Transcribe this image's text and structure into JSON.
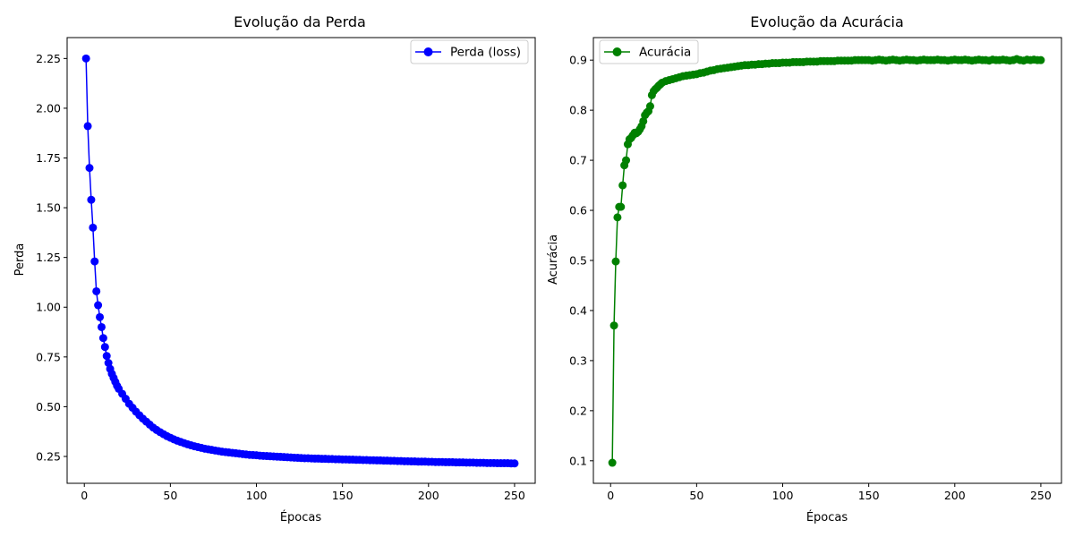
{
  "chart_data": [
    {
      "type": "line",
      "title": "Evolução da Perda",
      "xlabel": "Épocas",
      "ylabel": "Perda",
      "xlim": [
        -10,
        262
      ],
      "ylim": [
        0.115,
        2.355
      ],
      "xticks": [
        0,
        50,
        100,
        150,
        200,
        250
      ],
      "xtick_labels": [
        "0",
        "50",
        "100",
        "150",
        "200",
        "250"
      ],
      "yticks": [
        0.25,
        0.5,
        0.75,
        1.0,
        1.25,
        1.5,
        1.75,
        2.0,
        2.25
      ],
      "ytick_labels": [
        "0.25",
        "0.50",
        "0.75",
        "1.00",
        "1.25",
        "1.50",
        "1.75",
        "2.00",
        "2.25"
      ],
      "grid": false,
      "legend_position": "upper right",
      "series": [
        {
          "name": "Perda (loss)",
          "color": "#0000ff",
          "marker": "circle",
          "x": [
            1,
            2,
            3,
            4,
            5,
            6,
            7,
            8,
            9,
            10,
            11,
            12,
            13,
            14,
            15,
            16,
            17,
            18,
            19,
            20,
            22,
            24,
            26,
            28,
            30,
            32,
            34,
            36,
            38,
            40,
            42,
            44,
            46,
            48,
            50,
            52,
            54,
            56,
            58,
            60,
            62,
            64,
            66,
            68,
            70,
            72,
            74,
            76,
            78,
            80,
            82,
            84,
            86,
            88,
            90,
            92,
            94,
            96,
            98,
            100,
            102,
            104,
            106,
            108,
            110,
            112,
            114,
            116,
            118,
            120,
            122,
            124,
            126,
            128,
            130,
            132,
            134,
            136,
            138,
            140,
            142,
            144,
            146,
            148,
            150,
            152,
            154,
            156,
            158,
            160,
            162,
            164,
            166,
            168,
            170,
            172,
            174,
            176,
            178,
            180,
            182,
            184,
            186,
            188,
            190,
            192,
            194,
            196,
            198,
            200,
            202,
            204,
            206,
            208,
            210,
            212,
            214,
            216,
            218,
            220,
            222,
            224,
            226,
            228,
            230,
            232,
            234,
            236,
            238,
            240,
            242,
            244,
            246,
            248,
            250
          ],
          "y": [
            2.25,
            1.91,
            1.7,
            1.54,
            1.4,
            1.23,
            1.08,
            1.01,
            0.95,
            0.9,
            0.845,
            0.8,
            0.755,
            0.72,
            0.69,
            0.665,
            0.645,
            0.625,
            0.605,
            0.59,
            0.565,
            0.54,
            0.515,
            0.495,
            0.475,
            0.457,
            0.44,
            0.425,
            0.41,
            0.395,
            0.383,
            0.372,
            0.362,
            0.352,
            0.344,
            0.336,
            0.329,
            0.323,
            0.317,
            0.311,
            0.306,
            0.301,
            0.297,
            0.293,
            0.289,
            0.286,
            0.283,
            0.28,
            0.277,
            0.274,
            0.272,
            0.27,
            0.268,
            0.266,
            0.264,
            0.262,
            0.26,
            0.258,
            0.257,
            0.256,
            0.254,
            0.253,
            0.252,
            0.251,
            0.25,
            0.249,
            0.248,
            0.247,
            0.246,
            0.245,
            0.244,
            0.243,
            0.242,
            0.241,
            0.241,
            0.24,
            0.239,
            0.239,
            0.238,
            0.238,
            0.237,
            0.237,
            0.236,
            0.236,
            0.235,
            0.235,
            0.234,
            0.234,
            0.233,
            0.233,
            0.232,
            0.232,
            0.231,
            0.231,
            0.23,
            0.23,
            0.229,
            0.229,
            0.228,
            0.228,
            0.227,
            0.227,
            0.226,
            0.226,
            0.225,
            0.225,
            0.224,
            0.224,
            0.224,
            0.223,
            0.223,
            0.222,
            0.222,
            0.222,
            0.221,
            0.221,
            0.221,
            0.22,
            0.22,
            0.22,
            0.219,
            0.219,
            0.219,
            0.218,
            0.218,
            0.218,
            0.217,
            0.217,
            0.217,
            0.216,
            0.216,
            0.216,
            0.216,
            0.215,
            0.215
          ]
        }
      ]
    },
    {
      "type": "line",
      "title": "Evolução da Acurácia",
      "xlabel": "Épocas",
      "ylabel": "Acurácia",
      "xlim": [
        -10,
        262
      ],
      "ylim": [
        0.055,
        0.945
      ],
      "xticks": [
        0,
        50,
        100,
        150,
        200,
        250
      ],
      "xtick_labels": [
        "0",
        "50",
        "100",
        "150",
        "200",
        "250"
      ],
      "yticks": [
        0.1,
        0.2,
        0.3,
        0.4,
        0.5,
        0.6,
        0.7,
        0.8,
        0.9
      ],
      "ytick_labels": [
        "0.1",
        "0.2",
        "0.3",
        "0.4",
        "0.5",
        "0.6",
        "0.7",
        "0.8",
        "0.9"
      ],
      "grid": false,
      "legend_position": "upper left",
      "series": [
        {
          "name": "Acurácia",
          "color": "#008000",
          "marker": "circle",
          "x": [
            1,
            2,
            3,
            4,
            5,
            6,
            7,
            8,
            9,
            10,
            11,
            12,
            13,
            14,
            15,
            16,
            17,
            18,
            19,
            20,
            21,
            22,
            23,
            24,
            25,
            26,
            27,
            28,
            29,
            30,
            32,
            34,
            36,
            38,
            40,
            42,
            44,
            46,
            48,
            50,
            52,
            54,
            56,
            58,
            60,
            62,
            64,
            66,
            68,
            70,
            72,
            74,
            76,
            78,
            80,
            82,
            84,
            86,
            88,
            90,
            92,
            94,
            96,
            98,
            100,
            102,
            104,
            106,
            108,
            110,
            112,
            114,
            116,
            118,
            120,
            122,
            124,
            126,
            128,
            130,
            132,
            134,
            136,
            138,
            140,
            142,
            144,
            146,
            148,
            150,
            152,
            154,
            156,
            158,
            160,
            162,
            164,
            166,
            168,
            170,
            172,
            174,
            176,
            178,
            180,
            182,
            184,
            186,
            188,
            190,
            192,
            194,
            196,
            198,
            200,
            202,
            204,
            206,
            208,
            210,
            212,
            214,
            216,
            218,
            220,
            222,
            224,
            226,
            228,
            230,
            232,
            234,
            236,
            238,
            240,
            242,
            244,
            246,
            248,
            250
          ],
          "y": [
            0.096,
            0.37,
            0.498,
            0.586,
            0.607,
            0.607,
            0.65,
            0.69,
            0.7,
            0.732,
            0.742,
            0.745,
            0.75,
            0.755,
            0.754,
            0.757,
            0.762,
            0.768,
            0.778,
            0.79,
            0.795,
            0.798,
            0.808,
            0.83,
            0.838,
            0.842,
            0.845,
            0.849,
            0.852,
            0.855,
            0.858,
            0.86,
            0.862,
            0.864,
            0.866,
            0.868,
            0.869,
            0.87,
            0.871,
            0.872,
            0.874,
            0.875,
            0.877,
            0.879,
            0.88,
            0.882,
            0.883,
            0.884,
            0.885,
            0.886,
            0.887,
            0.888,
            0.889,
            0.89,
            0.89,
            0.891,
            0.891,
            0.892,
            0.892,
            0.893,
            0.893,
            0.894,
            0.894,
            0.894,
            0.895,
            0.895,
            0.895,
            0.896,
            0.896,
            0.896,
            0.896,
            0.897,
            0.897,
            0.897,
            0.897,
            0.898,
            0.898,
            0.898,
            0.898,
            0.898,
            0.899,
            0.899,
            0.899,
            0.899,
            0.899,
            0.9,
            0.9,
            0.9,
            0.9,
            0.9,
            0.899,
            0.9,
            0.901,
            0.9,
            0.899,
            0.9,
            0.901,
            0.9,
            0.899,
            0.9,
            0.901,
            0.9,
            0.9,
            0.899,
            0.9,
            0.901,
            0.9,
            0.9,
            0.9,
            0.901,
            0.9,
            0.9,
            0.899,
            0.9,
            0.901,
            0.9,
            0.9,
            0.901,
            0.9,
            0.899,
            0.9,
            0.901,
            0.9,
            0.9,
            0.899,
            0.901,
            0.9,
            0.9,
            0.901,
            0.9,
            0.899,
            0.9,
            0.902,
            0.9,
            0.899,
            0.901,
            0.9,
            0.901,
            0.9,
            0.9
          ]
        }
      ]
    }
  ]
}
